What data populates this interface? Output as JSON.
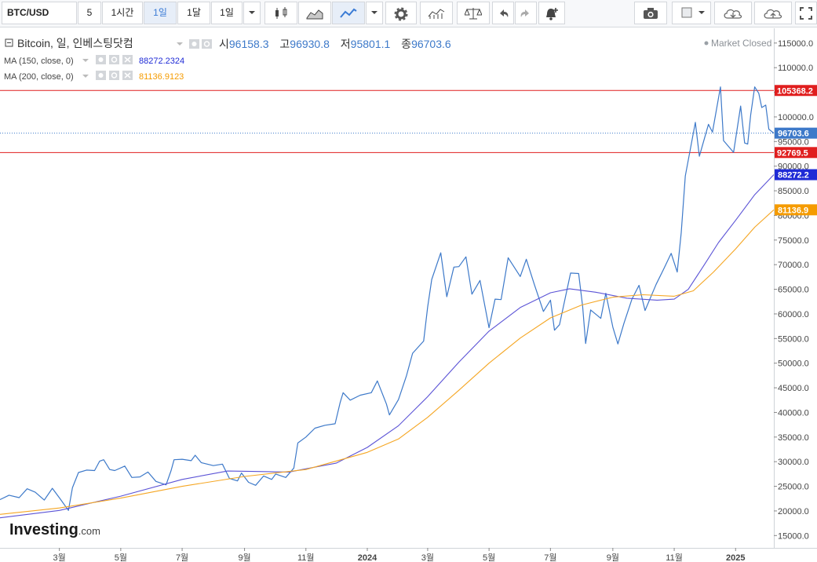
{
  "toolbar": {
    "symbol": "BTC/USD",
    "intervals": [
      "5",
      "1시간",
      "1일",
      "1달",
      "1일"
    ],
    "active_interval": 2
  },
  "legend": {
    "title": "Bitcoin, 일, 인베스팅닷컴",
    "open_label": "시",
    "open": "96158.3",
    "high_label": "고",
    "high": "96930.8",
    "low_label": "저",
    "low": "95801.1",
    "close_label": "종",
    "close": "96703.6",
    "ma150_label": "MA (150, close, 0)",
    "ma150_value": "88272.2324",
    "ma200_label": "MA (200, close, 0)",
    "ma200_value": "81136.9123",
    "market_status": "Market Closed"
  },
  "watermark": {
    "brand": "Investing",
    "suffix": ".com"
  },
  "colors": {
    "price": "#3d79c9",
    "ma150": "#5b53d6",
    "ma200": "#f5a623",
    "hline": "#e01e1e",
    "up_tag": "#3d79c9"
  },
  "chart_data": {
    "type": "line",
    "title": "Bitcoin, 일, 인베스팅닷컴",
    "ylim": [
      12500,
      118000
    ],
    "xlim": [
      "2023-01-01",
      "2025-02-08"
    ],
    "yticks": [
      15000,
      20000,
      25000,
      30000,
      35000,
      40000,
      45000,
      50000,
      55000,
      60000,
      65000,
      70000,
      75000,
      80000,
      85000,
      90000,
      95000,
      100000,
      105000,
      110000,
      115000
    ],
    "ytick_labels": [
      "15000.0",
      "20000.0",
      "25000.0",
      "30000.0",
      "35000.0",
      "40000.0",
      "45000.0",
      "50000.0",
      "55000.0",
      "60000.0",
      "65000.0",
      "70000.0",
      "75000.0",
      "80000.0",
      "85000.0",
      "90000.0",
      "95000.0",
      "100000.0",
      "105000.0",
      "110000.0",
      "115000.0"
    ],
    "xticks": [
      {
        "date": "2023-03-01",
        "label": "3월"
      },
      {
        "date": "2023-05-01",
        "label": "5월"
      },
      {
        "date": "2023-07-01",
        "label": "7월"
      },
      {
        "date": "2023-09-01",
        "label": "9월"
      },
      {
        "date": "2023-11-01",
        "label": "11월"
      },
      {
        "date": "2024-01-01",
        "label": "2024"
      },
      {
        "date": "2024-03-01",
        "label": "3월"
      },
      {
        "date": "2024-05-01",
        "label": "5월"
      },
      {
        "date": "2024-07-01",
        "label": "7월"
      },
      {
        "date": "2024-09-01",
        "label": "9월"
      },
      {
        "date": "2024-11-01",
        "label": "11월"
      },
      {
        "date": "2025-01-01",
        "label": "2025"
      }
    ],
    "horizontal_lines": [
      {
        "value": 105368.2,
        "label": "105368.2"
      },
      {
        "value": 92769.5,
        "label": "92769.5"
      }
    ],
    "last_value_tags": [
      {
        "value": 96703.6,
        "label": "96703.6",
        "series": "price"
      },
      {
        "value": 88272.2,
        "label": "88272.2",
        "series": "ma150"
      },
      {
        "value": 81136.9,
        "label": "81136.9",
        "series": "ma200"
      }
    ],
    "series": [
      {
        "name": "Bitcoin",
        "key": "price",
        "points": [
          [
            "2023-01-01",
            22300
          ],
          [
            "2023-01-10",
            23200
          ],
          [
            "2023-01-20",
            22700
          ],
          [
            "2023-01-28",
            24500
          ],
          [
            "2023-02-05",
            23800
          ],
          [
            "2023-02-14",
            22200
          ],
          [
            "2023-02-22",
            24600
          ],
          [
            "2023-03-02",
            22400
          ],
          [
            "2023-03-10",
            20100
          ],
          [
            "2023-03-14",
            24700
          ],
          [
            "2023-03-20",
            27800
          ],
          [
            "2023-03-28",
            28300
          ],
          [
            "2023-04-05",
            28200
          ],
          [
            "2023-04-10",
            30100
          ],
          [
            "2023-04-14",
            30400
          ],
          [
            "2023-04-20",
            28400
          ],
          [
            "2023-04-25",
            28200
          ],
          [
            "2023-05-05",
            29100
          ],
          [
            "2023-05-12",
            26800
          ],
          [
            "2023-05-20",
            26900
          ],
          [
            "2023-05-28",
            27900
          ],
          [
            "2023-06-05",
            26000
          ],
          [
            "2023-06-15",
            25300
          ],
          [
            "2023-06-20",
            28200
          ],
          [
            "2023-06-23",
            30400
          ],
          [
            "2023-07-01",
            30500
          ],
          [
            "2023-07-10",
            30200
          ],
          [
            "2023-07-14",
            31300
          ],
          [
            "2023-07-20",
            29800
          ],
          [
            "2023-08-01",
            29200
          ],
          [
            "2023-08-10",
            29500
          ],
          [
            "2023-08-17",
            26600
          ],
          [
            "2023-08-25",
            26100
          ],
          [
            "2023-08-29",
            27700
          ],
          [
            "2023-09-05",
            25800
          ],
          [
            "2023-09-12",
            25200
          ],
          [
            "2023-09-20",
            27100
          ],
          [
            "2023-09-28",
            26400
          ],
          [
            "2023-10-02",
            27500
          ],
          [
            "2023-10-12",
            26800
          ],
          [
            "2023-10-20",
            28700
          ],
          [
            "2023-10-24",
            33800
          ],
          [
            "2023-11-01",
            35000
          ],
          [
            "2023-11-10",
            36800
          ],
          [
            "2023-11-20",
            37400
          ],
          [
            "2023-11-30",
            37700
          ],
          [
            "2023-12-05",
            42000
          ],
          [
            "2023-12-08",
            44000
          ],
          [
            "2023-12-15",
            42500
          ],
          [
            "2023-12-25",
            43500
          ],
          [
            "2024-01-05",
            44000
          ],
          [
            "2024-01-11",
            46400
          ],
          [
            "2024-01-20",
            41700
          ],
          [
            "2024-01-23",
            39500
          ],
          [
            "2024-02-01",
            42600
          ],
          [
            "2024-02-09",
            47500
          ],
          [
            "2024-02-15",
            52000
          ],
          [
            "2024-02-26",
            54500
          ],
          [
            "2024-03-01",
            61400
          ],
          [
            "2024-03-05",
            67000
          ],
          [
            "2024-03-14",
            72400
          ],
          [
            "2024-03-20",
            63500
          ],
          [
            "2024-03-27",
            69500
          ],
          [
            "2024-04-01",
            69600
          ],
          [
            "2024-04-08",
            71600
          ],
          [
            "2024-04-14",
            64000
          ],
          [
            "2024-04-22",
            66800
          ],
          [
            "2024-05-01",
            57200
          ],
          [
            "2024-05-07",
            63000
          ],
          [
            "2024-05-13",
            62900
          ],
          [
            "2024-05-20",
            71400
          ],
          [
            "2024-06-01",
            67600
          ],
          [
            "2024-06-07",
            71100
          ],
          [
            "2024-06-15",
            66000
          ],
          [
            "2024-06-24",
            60500
          ],
          [
            "2024-07-01",
            62800
          ],
          [
            "2024-07-05",
            56700
          ],
          [
            "2024-07-10",
            57800
          ],
          [
            "2024-07-21",
            68300
          ],
          [
            "2024-07-29",
            68200
          ],
          [
            "2024-08-02",
            61500
          ],
          [
            "2024-08-05",
            54000
          ],
          [
            "2024-08-10",
            60800
          ],
          [
            "2024-08-20",
            59100
          ],
          [
            "2024-08-25",
            64200
          ],
          [
            "2024-09-01",
            57300
          ],
          [
            "2024-09-06",
            53900
          ],
          [
            "2024-09-12",
            58100
          ],
          [
            "2024-09-20",
            63000
          ],
          [
            "2024-09-27",
            65800
          ],
          [
            "2024-10-03",
            60700
          ],
          [
            "2024-10-14",
            66000
          ],
          [
            "2024-10-21",
            68900
          ],
          [
            "2024-10-29",
            72300
          ],
          [
            "2024-11-04",
            68500
          ],
          [
            "2024-11-08",
            76500
          ],
          [
            "2024-11-12",
            88000
          ],
          [
            "2024-11-22",
            98900
          ],
          [
            "2024-11-26",
            92000
          ],
          [
            "2024-12-05",
            98500
          ],
          [
            "2024-12-09",
            96900
          ],
          [
            "2024-12-17",
            106100
          ],
          [
            "2024-12-20",
            95200
          ],
          [
            "2024-12-30",
            92800
          ],
          [
            "2025-01-06",
            102200
          ],
          [
            "2025-01-10",
            94700
          ],
          [
            "2025-01-13",
            94500
          ],
          [
            "2025-01-16",
            100400
          ],
          [
            "2025-01-20",
            106100
          ],
          [
            "2025-01-24",
            104800
          ],
          [
            "2025-01-27",
            101900
          ],
          [
            "2025-01-31",
            102400
          ],
          [
            "2025-02-03",
            97500
          ],
          [
            "2025-02-08",
            96703.6
          ]
        ]
      },
      {
        "name": "MA (150, close, 0)",
        "key": "ma150",
        "points": [
          [
            "2023-01-01",
            18600
          ],
          [
            "2023-03-01",
            20100
          ],
          [
            "2023-05-01",
            23000
          ],
          [
            "2023-07-01",
            26400
          ],
          [
            "2023-08-15",
            28100
          ],
          [
            "2023-09-15",
            28000
          ],
          [
            "2023-10-15",
            27900
          ],
          [
            "2023-12-01",
            29700
          ],
          [
            "2024-01-01",
            32900
          ],
          [
            "2024-02-01",
            37300
          ],
          [
            "2024-03-01",
            43200
          ],
          [
            "2024-04-01",
            50200
          ],
          [
            "2024-05-01",
            56500
          ],
          [
            "2024-06-01",
            61300
          ],
          [
            "2024-07-01",
            64300
          ],
          [
            "2024-07-20",
            65100
          ],
          [
            "2024-08-15",
            64400
          ],
          [
            "2024-09-15",
            63200
          ],
          [
            "2024-10-15",
            62800
          ],
          [
            "2024-11-01",
            63000
          ],
          [
            "2024-11-15",
            65000
          ],
          [
            "2024-12-01",
            70000
          ],
          [
            "2024-12-15",
            74500
          ],
          [
            "2025-01-01",
            79000
          ],
          [
            "2025-01-20",
            84200
          ],
          [
            "2025-02-08",
            88272.2
          ]
        ]
      },
      {
        "name": "MA (200, close, 0)",
        "key": "ma200",
        "points": [
          [
            "2023-01-01",
            19300
          ],
          [
            "2023-03-01",
            20600
          ],
          [
            "2023-05-01",
            22600
          ],
          [
            "2023-07-01",
            25000
          ],
          [
            "2023-09-01",
            27000
          ],
          [
            "2023-11-01",
            28400
          ],
          [
            "2024-01-01",
            31900
          ],
          [
            "2024-02-01",
            34600
          ],
          [
            "2024-03-01",
            39000
          ],
          [
            "2024-04-01",
            44500
          ],
          [
            "2024-05-01",
            50000
          ],
          [
            "2024-06-01",
            55100
          ],
          [
            "2024-07-01",
            59200
          ],
          [
            "2024-08-01",
            61800
          ],
          [
            "2024-09-01",
            63400
          ],
          [
            "2024-10-01",
            63900
          ],
          [
            "2024-11-01",
            63600
          ],
          [
            "2024-11-20",
            64700
          ],
          [
            "2024-12-10",
            68500
          ],
          [
            "2025-01-01",
            73200
          ],
          [
            "2025-01-20",
            77600
          ],
          [
            "2025-02-08",
            81136.9
          ]
        ]
      }
    ]
  }
}
